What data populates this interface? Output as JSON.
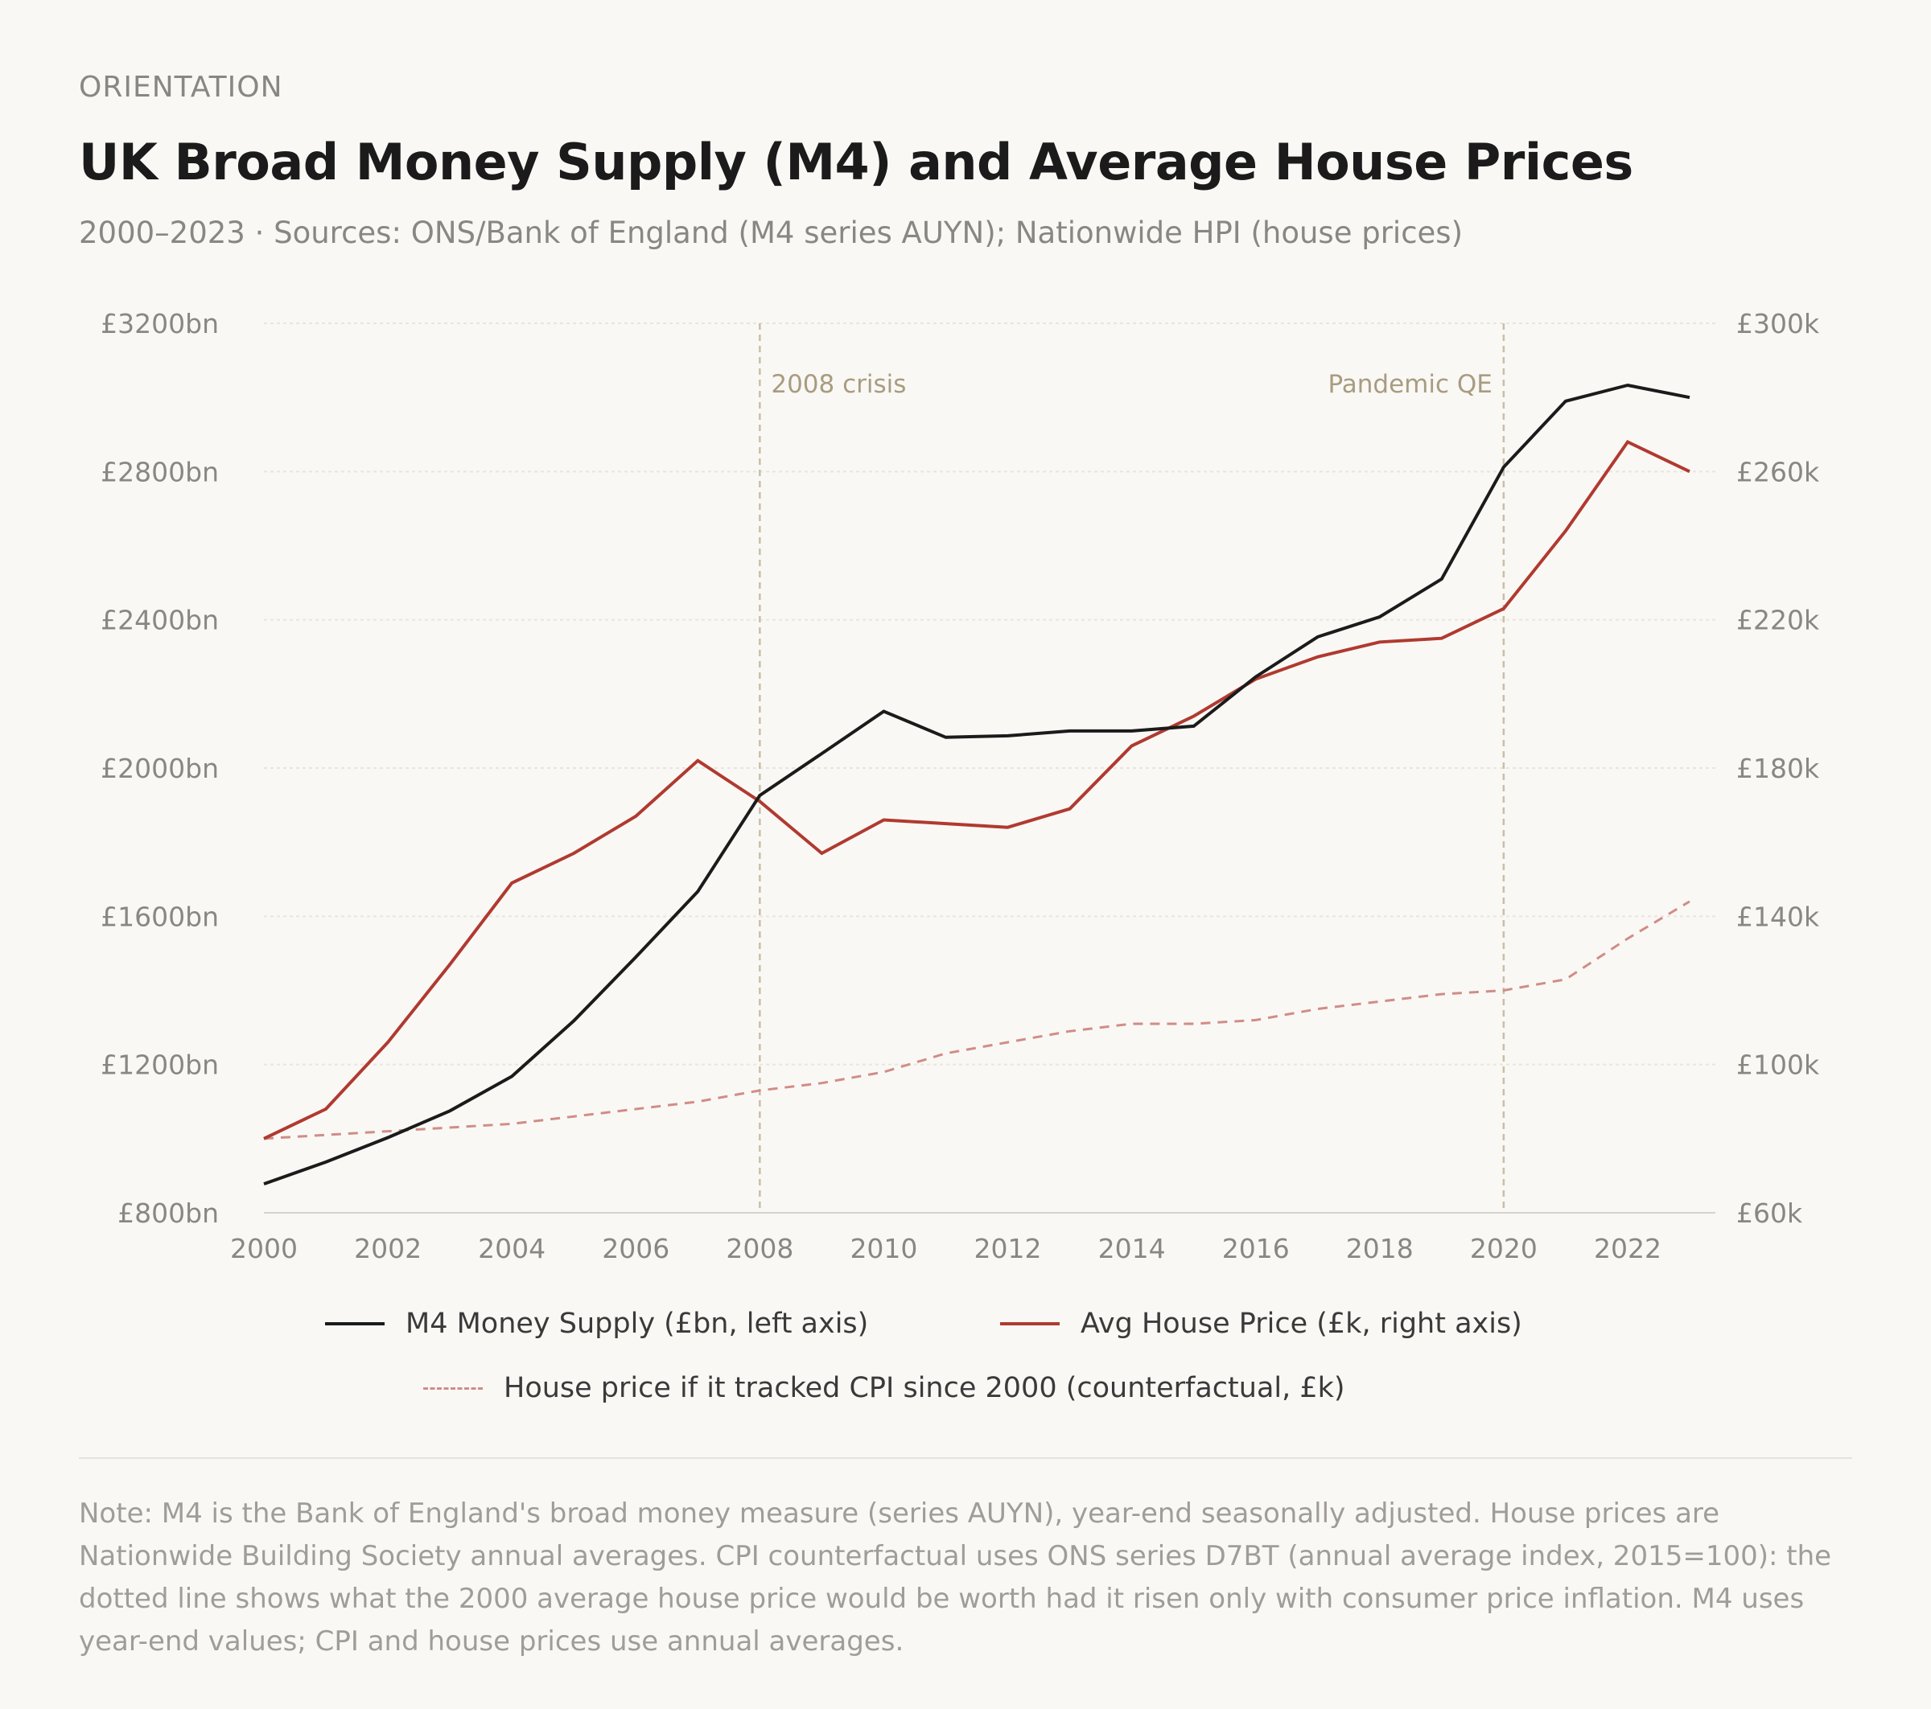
{
  "header": {
    "eyebrow": "ORIENTATION",
    "title": "UK Broad Money Supply (M4) and Average House Prices",
    "subtitle": "2000–2023  ·  Sources: ONS/Bank of England (M4 series AUYN); Nationwide HPI (house prices)"
  },
  "chart_data": {
    "type": "line",
    "x": [
      2000,
      2001,
      2002,
      2003,
      2004,
      2005,
      2006,
      2007,
      2008,
      2009,
      2010,
      2011,
      2012,
      2013,
      2014,
      2015,
      2016,
      2017,
      2018,
      2019,
      2020,
      2021,
      2022,
      2023
    ],
    "x_ticks": [
      "2000",
      "2002",
      "2004",
      "2006",
      "2008",
      "2010",
      "2012",
      "2014",
      "2016",
      "2018",
      "2020",
      "2022"
    ],
    "xlim": [
      2000,
      2023.3
    ],
    "y_left": {
      "ylim": [
        800,
        3200
      ],
      "ticks": [
        800,
        1200,
        1600,
        2000,
        2400,
        2800,
        3200
      ],
      "tick_labels": [
        "£800bn",
        "£1200bn",
        "£1600bn",
        "£2000bn",
        "£2400bn",
        "£2800bn",
        "£3200bn"
      ]
    },
    "y_right": {
      "ylim": [
        60,
        300
      ],
      "ticks": [
        60,
        100,
        140,
        180,
        220,
        260,
        300
      ],
      "tick_labels": [
        "£60k",
        "£100k",
        "£140k",
        "£180k",
        "£220k",
        "£260k",
        "£300k"
      ]
    },
    "grid": true,
    "legend_position": "bottom",
    "series": [
      {
        "name": "M4 Money Supply (£bn, left axis)",
        "axis": "left",
        "color": "#1b1b1b",
        "style": "solid",
        "values": [
          878,
          937,
          1003,
          1075,
          1168,
          1318,
          1490,
          1667,
          1926,
          2039,
          2153,
          2083,
          2087,
          2100,
          2100,
          2113,
          2246,
          2354,
          2408,
          2510,
          2812,
          2990,
          3033,
          3000
        ]
      },
      {
        "name": "Avg House Price (£k, right axis)",
        "axis": "right",
        "color": "#b03a30",
        "style": "solid",
        "values": [
          80,
          88,
          106,
          127,
          149,
          157,
          167,
          182,
          171,
          157,
          166,
          165,
          164,
          169,
          186,
          194,
          204,
          210,
          214,
          215,
          223,
          244,
          268,
          260
        ]
      },
      {
        "name": "House price if it tracked CPI since 2000 (counterfactual, £k)",
        "axis": "right",
        "color": "#d08d87",
        "style": "dashed",
        "values": [
          80,
          81,
          82,
          83,
          84,
          86,
          88,
          90,
          93,
          95,
          98,
          103,
          106,
          109,
          111,
          111,
          112,
          115,
          117,
          119,
          120,
          123,
          134,
          144
        ]
      }
    ],
    "annotations": [
      {
        "x": 2008,
        "label": "2008 crisis",
        "color": "#c9bfa6"
      },
      {
        "x": 2020,
        "label": "Pandemic QE",
        "color": "#c9bfa6"
      }
    ]
  },
  "note": "Note: M4 is the Bank of England's broad money measure (series AUYN), year-end seasonally adjusted. House prices are Nationwide Building Society annual averages. CPI counterfactual uses ONS series D7BT (annual average index, 2015=100): the dotted line shows what the 2000 average house price would be worth had it risen only with consumer price inflation. M4 uses year-end values; CPI and house prices use annual averages."
}
